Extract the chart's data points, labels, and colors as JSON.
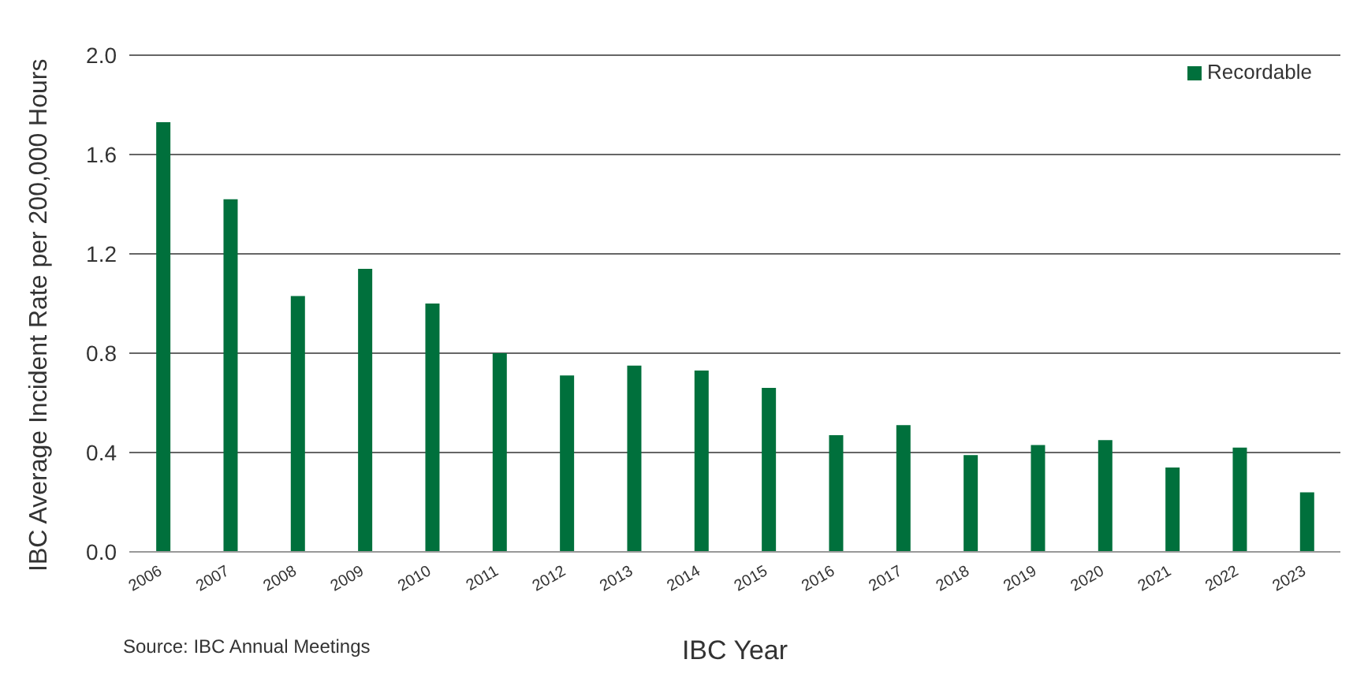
{
  "chart_data": {
    "type": "bar",
    "xlabel": "IBC Year",
    "ylabel": "IBC Average Incident Rate per 200,000 Hours",
    "categories": [
      "2006",
      "2007",
      "2008",
      "2009",
      "2010",
      "2011",
      "2012",
      "2013",
      "2014",
      "2015",
      "2016",
      "2017",
      "2018",
      "2019",
      "2020",
      "2021",
      "2022",
      "2023"
    ],
    "series": [
      {
        "name": "Recordable",
        "color": "#00703c",
        "values": [
          1.73,
          1.42,
          1.03,
          1.14,
          1.0,
          0.8,
          0.71,
          0.75,
          0.73,
          0.66,
          0.47,
          0.51,
          0.39,
          0.43,
          0.45,
          0.34,
          0.42,
          0.24
        ]
      }
    ],
    "ylim": [
      0,
      2
    ],
    "yticks": [
      {
        "value": 0,
        "label": "0.0"
      },
      {
        "value": 0.4,
        "label": "0.4"
      },
      {
        "value": 0.8,
        "label": "0.8"
      },
      {
        "value": 1.2,
        "label": "1.2"
      },
      {
        "value": 1.6,
        "label": "1.6"
      },
      {
        "value": 2,
        "label": "2.0"
      }
    ],
    "grid": "y",
    "legend": "top right",
    "annotations": [
      "Source: IBC Annual Meetings"
    ]
  }
}
